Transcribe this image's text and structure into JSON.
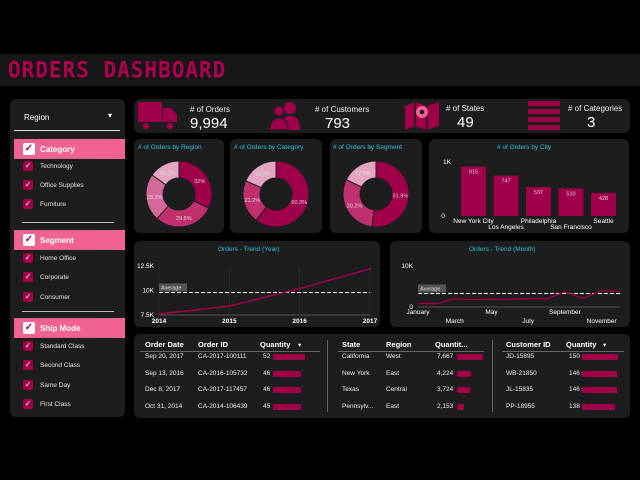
{
  "header": {
    "title": "ORDERS DASHBOARD"
  },
  "sidebar": {
    "dropdown": "Region",
    "sections": [
      {
        "label": "Category",
        "items": [
          "Technology",
          "Office Supplies",
          "Furniture"
        ]
      },
      {
        "label": "Segment",
        "items": [
          "Home Office",
          "Corporate",
          "Consumer"
        ]
      },
      {
        "label": "Ship Mode",
        "items": [
          "Standard Class",
          "Second Class",
          "Same Day",
          "First Class"
        ]
      }
    ]
  },
  "kpis": [
    {
      "label": "# of Orders",
      "value": "9,994",
      "icon": "truck-icon"
    },
    {
      "label": "# of Customers",
      "value": "793",
      "icon": "people-icon"
    },
    {
      "label": "# of States",
      "value": "49",
      "icon": "map-icon"
    },
    {
      "label": "# of Categories",
      "value": "3",
      "icon": "list-icon"
    }
  ],
  "colors": {
    "accent": "#a0004a",
    "pink": "#f06292",
    "light_pink": "#d46a9a",
    "pale": "#e3a5c0",
    "title_cyan": "#2ec4d6",
    "panel": "#1d1d1d"
  },
  "chart_data": [
    {
      "type": "pie",
      "title": "# of Orders by Region",
      "labels": [
        "32%",
        "29.5%",
        "23.1%",
        "15.2%"
      ],
      "values": [
        32,
        29.5,
        23.1,
        15.2
      ],
      "colors": [
        "#a0004a",
        "#c0306e",
        "#d46a9a",
        "#e3a5c0"
      ]
    },
    {
      "type": "pie",
      "title": "# of Orders by Category",
      "labels": [
        "60.3%",
        "21.2%",
        "18.5%"
      ],
      "values": [
        60.3,
        21.2,
        18.5
      ],
      "colors": [
        "#a0004a",
        "#c0306e",
        "#e3a5c0"
      ]
    },
    {
      "type": "pie",
      "title": "# of Orders by Segment",
      "labels": [
        "51.9%",
        "30.2%",
        "17.8%"
      ],
      "values": [
        51.9,
        30.2,
        17.8
      ],
      "colors": [
        "#a0004a",
        "#c0306e",
        "#e3a5c0"
      ]
    },
    {
      "type": "bar",
      "title": "# of Orders by City",
      "categories": [
        "New York City",
        "Los Angeles",
        "Philadelphia",
        "San Francisco",
        "Seattle"
      ],
      "values": [
        915,
        747,
        537,
        510,
        428
      ],
      "yticks": [
        "0",
        "1K"
      ],
      "ylim": [
        0,
        1000
      ]
    },
    {
      "type": "line",
      "title": "Orders - Trend (Year)",
      "x": [
        "2014",
        "2015",
        "2016",
        "2017"
      ],
      "y": [
        7600,
        8400,
        10200,
        12200
      ],
      "average": 9800,
      "average_label": "Average",
      "yticks": [
        "7.5K",
        "10K",
        "12.5K"
      ],
      "ylim": [
        7500,
        12500
      ]
    },
    {
      "type": "line",
      "title": "Orders - Trend (Month)",
      "x": [
        "January",
        "February",
        "March",
        "April",
        "May",
        "June",
        "July",
        "August",
        "September",
        "October",
        "November",
        "December"
      ],
      "x_tick_labels": [
        "January",
        "March",
        "May",
        "July",
        "September",
        "November"
      ],
      "y": [
        900,
        800,
        2000,
        1800,
        1900,
        1900,
        2000,
        2000,
        3700,
        2100,
        4000,
        3800
      ],
      "average": 3300,
      "average_label": "Average",
      "yticks": [
        "0",
        "10K"
      ],
      "ylim": [
        0,
        10000
      ]
    }
  ],
  "tables": {
    "orders": {
      "headers": [
        "Order Date",
        "Order ID",
        "Quantity"
      ],
      "rows": [
        {
          "date": "Sep 20, 2017",
          "id": "CA-2017-100111",
          "qty": "52",
          "frac": 1.0
        },
        {
          "date": "Sep 13, 2016",
          "id": "CA-2016-105732",
          "qty": "46",
          "frac": 0.88
        },
        {
          "date": "Dec 8, 2017",
          "id": "CA-2017-117457",
          "qty": "46",
          "frac": 0.88
        },
        {
          "date": "Oct 31, 2014",
          "id": "CA-2014-106439",
          "qty": "45",
          "frac": 0.86
        }
      ]
    },
    "states": {
      "headers": [
        "State",
        "Region",
        "Quantit..."
      ],
      "rows": [
        {
          "state": "California",
          "region": "West",
          "qty": "7,667",
          "frac": 1.0
        },
        {
          "state": "New York",
          "region": "East",
          "qty": "4,224",
          "frac": 0.55
        },
        {
          "state": "Texas",
          "region": "Central",
          "qty": "3,724",
          "frac": 0.49
        },
        {
          "state": "Pennsylv...",
          "region": "East",
          "qty": "2,153",
          "frac": 0.28
        }
      ]
    },
    "customers": {
      "headers": [
        "Customer ID",
        "Quantity"
      ],
      "rows": [
        {
          "id": "JD-15895",
          "qty": "150",
          "frac": 1.0
        },
        {
          "id": "WB-21850",
          "qty": "146",
          "frac": 0.97
        },
        {
          "id": "JL-15835",
          "qty": "146",
          "frac": 0.97
        },
        {
          "id": "PP-18955",
          "qty": "138",
          "frac": 0.92
        }
      ]
    }
  }
}
